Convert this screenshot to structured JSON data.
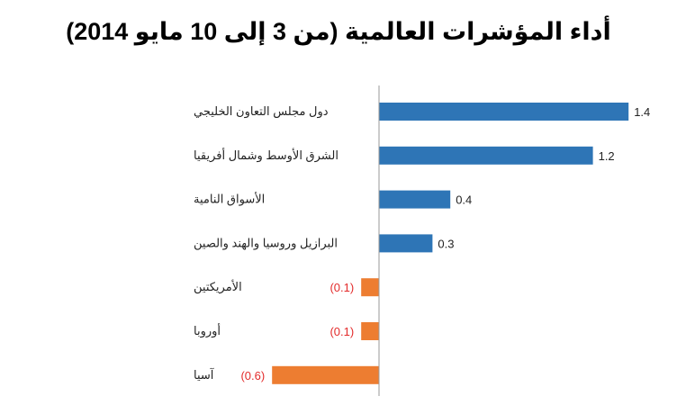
{
  "chart_data": {
    "type": "bar",
    "orientation": "horizontal",
    "title": "أداء المؤشرات العالمية  (من 3 إلى 10 مايو 2014)",
    "categories": [
      "دول مجلس التعاون الخليجي",
      "الشرق الأوسط وشمال أفريقيا",
      "الأسواق النامية",
      "البرازيل وروسيا والهند والصين",
      "الأمريكتين",
      "أوروبا",
      "آسيا"
    ],
    "values": [
      1.4,
      1.2,
      0.4,
      0.3,
      -0.1,
      -0.1,
      -0.6
    ],
    "value_labels": [
      "1.4",
      "1.2",
      "0.4",
      "0.3",
      "(0.1)",
      "(0.1)",
      "(0.6)"
    ],
    "colors": {
      "positive": "#2E75B6",
      "negative": "#ED7D31",
      "negative_label": "#E32B2B",
      "positive_label": "#222222",
      "axis": "#9a9a9a"
    },
    "xlim": [
      -0.6,
      1.4
    ],
    "grid": false,
    "legend": "none"
  }
}
